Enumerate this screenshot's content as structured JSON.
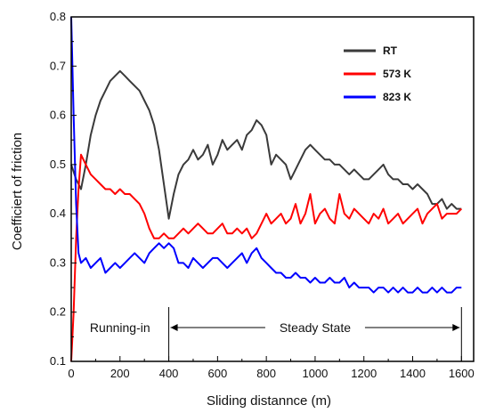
{
  "chart_data": {
    "type": "line",
    "xlabel": "Sliding distannce (m)",
    "ylabel": "Coefficiert of friction",
    "xlim": [
      0,
      1650
    ],
    "ylim": [
      0.1,
      0.8
    ],
    "x_ticks": [
      "0",
      "200",
      "400",
      "600",
      "800",
      "1000",
      "1200",
      "1400",
      "1600"
    ],
    "y_ticks": [
      "0.1",
      "0.2",
      "0.3",
      "0.4",
      "0.5",
      "0.6",
      "0.7",
      "0.8"
    ],
    "legend_position": "top-right",
    "series": [
      {
        "name": "RT",
        "color": "#3a3a3a",
        "x": [
          0,
          20,
          40,
          60,
          80,
          100,
          120,
          140,
          160,
          180,
          200,
          220,
          240,
          260,
          280,
          300,
          320,
          340,
          360,
          380,
          400,
          420,
          440,
          460,
          480,
          500,
          520,
          540,
          560,
          580,
          600,
          620,
          640,
          660,
          680,
          700,
          720,
          740,
          760,
          780,
          800,
          820,
          840,
          860,
          880,
          900,
          920,
          940,
          960,
          980,
          1000,
          1020,
          1040,
          1060,
          1080,
          1100,
          1120,
          1140,
          1160,
          1180,
          1200,
          1220,
          1240,
          1260,
          1280,
          1300,
          1320,
          1340,
          1360,
          1380,
          1400,
          1420,
          1440,
          1460,
          1480,
          1500,
          1520,
          1540,
          1560,
          1580,
          1600
        ],
        "y": [
          0.5,
          0.47,
          0.45,
          0.5,
          0.56,
          0.6,
          0.63,
          0.65,
          0.67,
          0.68,
          0.69,
          0.68,
          0.67,
          0.66,
          0.65,
          0.63,
          0.61,
          0.58,
          0.53,
          0.46,
          0.39,
          0.44,
          0.48,
          0.5,
          0.51,
          0.53,
          0.51,
          0.52,
          0.54,
          0.5,
          0.52,
          0.55,
          0.53,
          0.54,
          0.55,
          0.53,
          0.56,
          0.57,
          0.59,
          0.58,
          0.56,
          0.5,
          0.52,
          0.51,
          0.5,
          0.47,
          0.49,
          0.51,
          0.53,
          0.54,
          0.53,
          0.52,
          0.51,
          0.51,
          0.5,
          0.5,
          0.49,
          0.48,
          0.49,
          0.48,
          0.47,
          0.47,
          0.48,
          0.49,
          0.5,
          0.48,
          0.47,
          0.47,
          0.46,
          0.46,
          0.45,
          0.46,
          0.45,
          0.44,
          0.42,
          0.42,
          0.43,
          0.41,
          0.42,
          0.41,
          0.41
        ]
      },
      {
        "name": "573 K",
        "color": "#ff0000",
        "x": [
          0,
          10,
          20,
          30,
          40,
          60,
          80,
          100,
          120,
          140,
          160,
          180,
          200,
          220,
          240,
          260,
          280,
          300,
          320,
          340,
          360,
          380,
          400,
          420,
          440,
          460,
          480,
          500,
          520,
          540,
          560,
          580,
          600,
          620,
          640,
          660,
          680,
          700,
          720,
          740,
          760,
          780,
          800,
          820,
          840,
          860,
          880,
          900,
          920,
          940,
          960,
          980,
          1000,
          1020,
          1040,
          1060,
          1080,
          1100,
          1120,
          1140,
          1160,
          1180,
          1200,
          1220,
          1240,
          1260,
          1280,
          1300,
          1320,
          1340,
          1360,
          1380,
          1400,
          1420,
          1440,
          1460,
          1480,
          1500,
          1520,
          1540,
          1560,
          1580,
          1600
        ],
        "y": [
          0.1,
          0.2,
          0.35,
          0.45,
          0.52,
          0.5,
          0.48,
          0.47,
          0.46,
          0.45,
          0.45,
          0.44,
          0.45,
          0.44,
          0.44,
          0.43,
          0.42,
          0.4,
          0.37,
          0.35,
          0.35,
          0.36,
          0.35,
          0.35,
          0.36,
          0.37,
          0.36,
          0.37,
          0.38,
          0.37,
          0.36,
          0.36,
          0.37,
          0.38,
          0.36,
          0.36,
          0.37,
          0.36,
          0.37,
          0.35,
          0.36,
          0.38,
          0.4,
          0.38,
          0.39,
          0.4,
          0.38,
          0.39,
          0.42,
          0.38,
          0.4,
          0.44,
          0.38,
          0.4,
          0.41,
          0.39,
          0.38,
          0.44,
          0.4,
          0.39,
          0.41,
          0.4,
          0.39,
          0.38,
          0.4,
          0.39,
          0.41,
          0.38,
          0.39,
          0.4,
          0.38,
          0.39,
          0.4,
          0.41,
          0.38,
          0.4,
          0.41,
          0.42,
          0.39,
          0.4,
          0.4,
          0.4,
          0.41
        ]
      },
      {
        "name": "823 K",
        "color": "#0000ff",
        "x": [
          0,
          10,
          20,
          30,
          40,
          60,
          80,
          100,
          120,
          140,
          160,
          180,
          200,
          220,
          240,
          260,
          280,
          300,
          320,
          340,
          360,
          380,
          400,
          420,
          440,
          460,
          480,
          500,
          520,
          540,
          560,
          580,
          600,
          620,
          640,
          660,
          680,
          700,
          720,
          740,
          760,
          780,
          800,
          820,
          840,
          860,
          880,
          900,
          920,
          940,
          960,
          980,
          1000,
          1020,
          1040,
          1060,
          1080,
          1100,
          1120,
          1140,
          1160,
          1180,
          1200,
          1220,
          1240,
          1260,
          1280,
          1300,
          1320,
          1340,
          1360,
          1380,
          1400,
          1420,
          1440,
          1460,
          1480,
          1500,
          1520,
          1540,
          1560,
          1580,
          1600
        ],
        "y": [
          0.8,
          0.6,
          0.42,
          0.32,
          0.3,
          0.31,
          0.29,
          0.3,
          0.31,
          0.28,
          0.29,
          0.3,
          0.29,
          0.3,
          0.31,
          0.32,
          0.31,
          0.3,
          0.32,
          0.33,
          0.34,
          0.33,
          0.34,
          0.33,
          0.3,
          0.3,
          0.29,
          0.31,
          0.3,
          0.29,
          0.3,
          0.31,
          0.31,
          0.3,
          0.29,
          0.3,
          0.31,
          0.32,
          0.3,
          0.32,
          0.33,
          0.31,
          0.3,
          0.29,
          0.28,
          0.28,
          0.27,
          0.27,
          0.28,
          0.27,
          0.27,
          0.26,
          0.27,
          0.26,
          0.26,
          0.27,
          0.26,
          0.26,
          0.27,
          0.25,
          0.26,
          0.25,
          0.25,
          0.25,
          0.24,
          0.25,
          0.25,
          0.24,
          0.25,
          0.24,
          0.25,
          0.24,
          0.24,
          0.25,
          0.24,
          0.24,
          0.25,
          0.24,
          0.25,
          0.24,
          0.24,
          0.25,
          0.25
        ]
      }
    ],
    "annotations": {
      "running_in": "Running-in",
      "steady_state": "Steady State",
      "steady_range": [
        400,
        1600
      ]
    }
  }
}
